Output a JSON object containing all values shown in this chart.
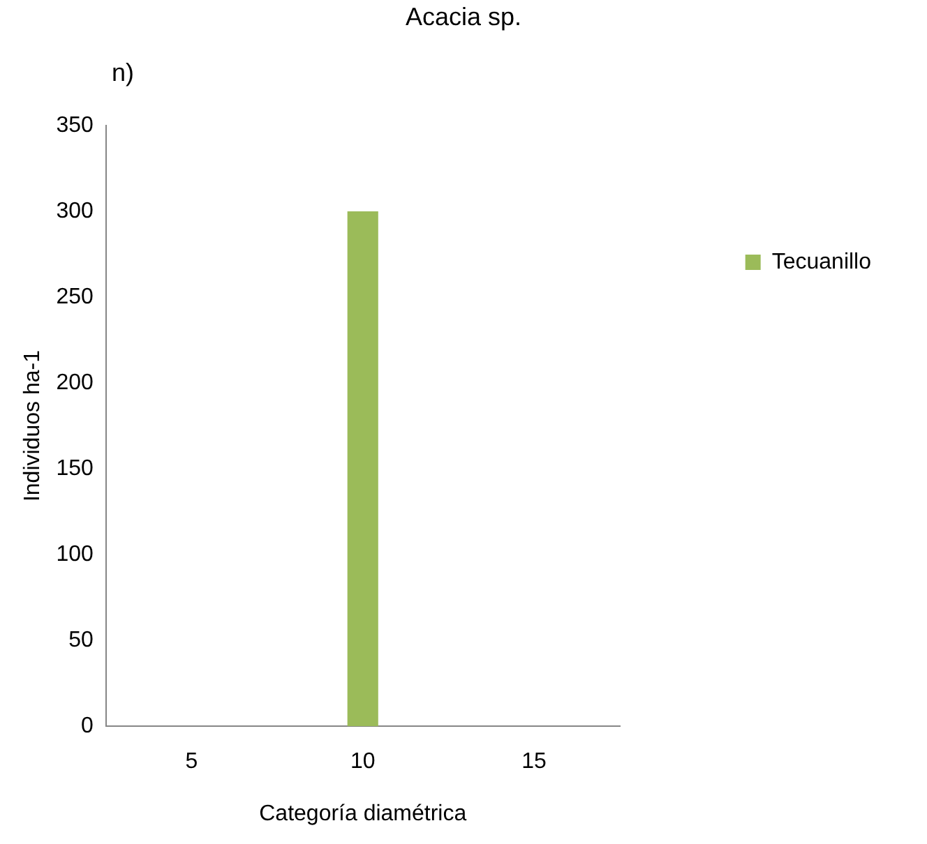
{
  "chart_data": {
    "type": "bar",
    "title": "Acacia sp.",
    "annotations": [
      "n)"
    ],
    "xlabel": "Categoría diamétrica",
    "ylabel": "Individuos ha-1",
    "categories": [
      "5",
      "10",
      "15"
    ],
    "series": [
      {
        "name": "Tecuanillo",
        "color": "#9bbb59",
        "values": [
          0,
          300,
          0
        ]
      }
    ],
    "ylim": [
      0,
      350
    ],
    "yticks": [
      0,
      50,
      100,
      150,
      200,
      250,
      300,
      350
    ],
    "grid": false,
    "legend": "right"
  }
}
